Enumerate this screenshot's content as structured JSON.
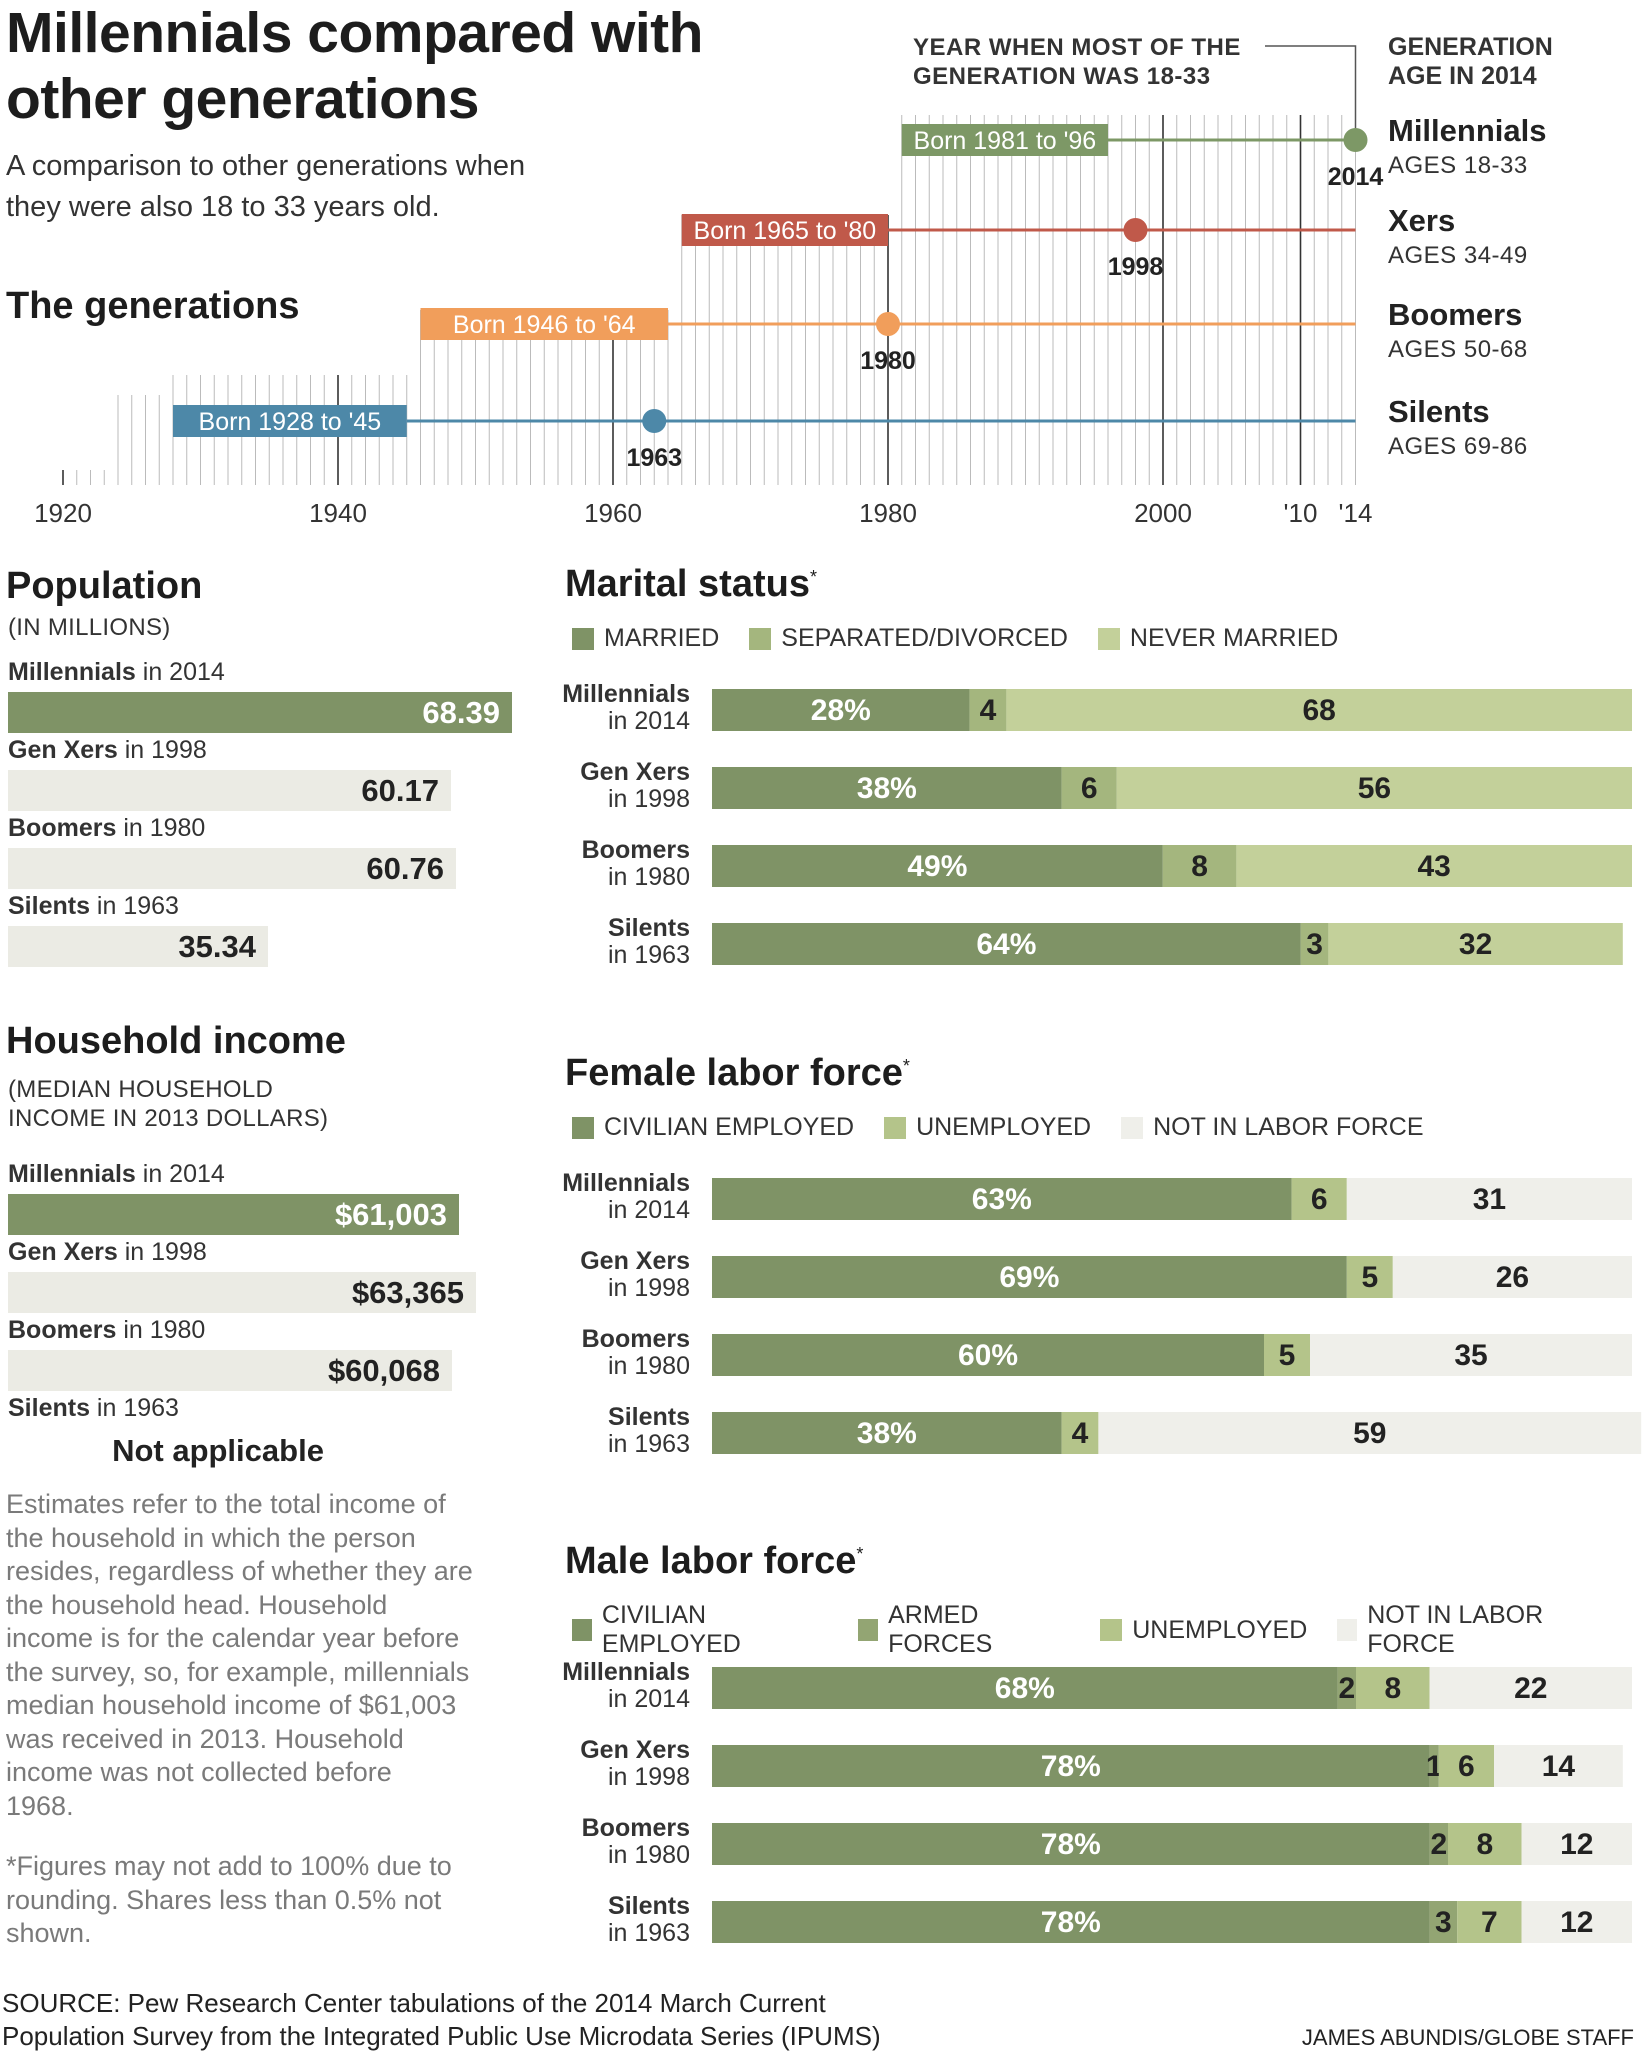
{
  "header": {
    "title_line1": "Millennials compared with",
    "title_line2": "other generations",
    "subtitle_line1": "A comparison to other generations when",
    "subtitle_line2": "they were also 18 to 33 years old."
  },
  "timeline": {
    "heading": "The generations",
    "note_line1": "YEAR WHEN MOST OF THE",
    "note_line2": "GENERATION WAS 18-33",
    "right_head_line1": "GENERATION",
    "right_head_line2": "AGE IN 2014",
    "axis_ticks": [
      "1920",
      "1940",
      "1960",
      "1980",
      "2000",
      "'10",
      "'14"
    ],
    "generations": [
      {
        "born_label": "Born 1981 to '96",
        "start": 1981,
        "end": 1996,
        "marker_year": 2014,
        "marker_label": "2014",
        "name": "Millennials",
        "ages": "AGES 18-33",
        "color": "#7d9866"
      },
      {
        "born_label": "Born 1965 to '80",
        "start": 1965,
        "end": 1980,
        "marker_year": 1998,
        "marker_label": "1998",
        "name": "Xers",
        "ages": "AGES 34-49",
        "color": "#c0594a"
      },
      {
        "born_label": "Born 1946 to '64",
        "start": 1946,
        "end": 1964,
        "marker_year": 1980,
        "marker_label": "1980",
        "name": "Boomers",
        "ages": "AGES 50-68",
        "color": "#f19e5b"
      },
      {
        "born_label": "Born 1928 to '45",
        "start": 1928,
        "end": 1945,
        "marker_year": 1963,
        "marker_label": "1963",
        "name": "Silents",
        "ages": "AGES 69-86",
        "color": "#4d88a8"
      }
    ]
  },
  "population": {
    "heading": "Population",
    "unit": "(IN MILLIONS)",
    "rows": [
      {
        "gen": "Millennials",
        "year": "in 2014",
        "value": 68.39,
        "label": "68.39"
      },
      {
        "gen": "Gen Xers",
        "year": "in 1998",
        "value": 60.17,
        "label": "60.17"
      },
      {
        "gen": "Boomers",
        "year": "in 1980",
        "value": 60.76,
        "label": "60.76"
      },
      {
        "gen": "Silents",
        "year": "in 1963",
        "value": 35.34,
        "label": "35.34"
      }
    ]
  },
  "income": {
    "heading": "Household income",
    "unit_line1": "(MEDIAN HOUSEHOLD",
    "unit_line2": "INCOME IN 2013 DOLLARS)",
    "rows": [
      {
        "gen": "Millennials",
        "year": "in 2014",
        "value": 61003,
        "label": "$61,003"
      },
      {
        "gen": "Gen Xers",
        "year": "in 1998",
        "value": 63365,
        "label": "$63,365"
      },
      {
        "gen": "Boomers",
        "year": "in 1980",
        "value": 60068,
        "label": "$60,068"
      },
      {
        "gen": "Silents",
        "year": "in 1963",
        "value": null,
        "label": "Not applicable"
      }
    ],
    "note": [
      "Estimates refer to the total income of",
      "the household in which the person",
      "resides, regardless of whether they are",
      "the household head. Household",
      "income is for the calendar year before",
      "the survey, so, for example, millennials",
      "median household income of $61,003",
      "was received in 2013. Household",
      "income was not collected before",
      "1968."
    ],
    "footnote": [
      "*Figures may not add to 100% due to",
      "rounding. Shares less than 0.5% not",
      "shown."
    ]
  },
  "marital": {
    "heading": "Marital status",
    "legend": [
      {
        "label": "MARRIED",
        "color": "#7f9366"
      },
      {
        "label": "SEPARATED/DIVORCED",
        "color": "#a4b67e"
      },
      {
        "label": "NEVER MARRIED",
        "color": "#c3d09a"
      }
    ],
    "rows": [
      {
        "gen": "Millennials",
        "year": "in 2014",
        "values": [
          28,
          4,
          68
        ],
        "labels": [
          "28%",
          "4",
          "68"
        ]
      },
      {
        "gen": "Gen Xers",
        "year": "in 1998",
        "values": [
          38,
          6,
          56
        ],
        "labels": [
          "38%",
          "6",
          "56"
        ]
      },
      {
        "gen": "Boomers",
        "year": "in 1980",
        "values": [
          49,
          8,
          43
        ],
        "labels": [
          "49%",
          "8",
          "43"
        ]
      },
      {
        "gen": "Silents",
        "year": "in 1963",
        "values": [
          64,
          3,
          32
        ],
        "labels": [
          "64%",
          "3",
          "32"
        ]
      }
    ]
  },
  "female": {
    "heading": "Female labor force",
    "legend": [
      {
        "label": "CIVILIAN EMPLOYED",
        "color": "#7f9366"
      },
      {
        "label": "UNEMPLOYED",
        "color": "#b4c48a"
      },
      {
        "label": "NOT IN LABOR FORCE",
        "color": "#efefea"
      }
    ],
    "rows": [
      {
        "gen": "Millennials",
        "year": "in 2014",
        "values": [
          63,
          6,
          31
        ],
        "labels": [
          "63%",
          "6",
          "31"
        ]
      },
      {
        "gen": "Gen Xers",
        "year": "in 1998",
        "values": [
          69,
          5,
          26
        ],
        "labels": [
          "69%",
          "5",
          "26"
        ]
      },
      {
        "gen": "Boomers",
        "year": "in 1980",
        "values": [
          60,
          5,
          35
        ],
        "labels": [
          "60%",
          "5",
          "35"
        ]
      },
      {
        "gen": "Silents",
        "year": "in 1963",
        "values": [
          38,
          4,
          59
        ],
        "labels": [
          "38%",
          "4",
          "59"
        ]
      }
    ]
  },
  "male": {
    "heading": "Male labor force",
    "legend": [
      {
        "label": "CIVILIAN EMPLOYED",
        "color": "#7f9366"
      },
      {
        "label": "ARMED FORCES",
        "color": "#93a573"
      },
      {
        "label": "UNEMPLOYED",
        "color": "#b4c48a"
      },
      {
        "label": "NOT IN LABOR FORCE",
        "color": "#efefea"
      }
    ],
    "rows": [
      {
        "gen": "Millennials",
        "year": "in 2014",
        "values": [
          68,
          2,
          8,
          22
        ],
        "labels": [
          "68%",
          "2",
          "8",
          "22"
        ]
      },
      {
        "gen": "Gen Xers",
        "year": "in 1998",
        "values": [
          78,
          1,
          6,
          14
        ],
        "labels": [
          "78%",
          "1",
          "6",
          "14"
        ]
      },
      {
        "gen": "Boomers",
        "year": "in 1980",
        "values": [
          78,
          2,
          8,
          12
        ],
        "labels": [
          "78%",
          "2",
          "8",
          "12"
        ]
      },
      {
        "gen": "Silents",
        "year": "in 1963",
        "values": [
          78,
          3,
          7,
          12
        ],
        "labels": [
          "78%",
          "3",
          "7",
          "12"
        ]
      }
    ]
  },
  "footer": {
    "source_line1": "SOURCE: Pew Research Center tabulations of the 2014 March Current",
    "source_line2": "Population Survey from the Integrated Public Use Microdata Series (IPUMS)",
    "credit": "JAMES ABUNDIS/GLOBE STAFF"
  },
  "chart_data": [
    {
      "type": "table",
      "title": "The generations",
      "rows": [
        {
          "name": "Millennials",
          "born": [
            1981,
            1996
          ],
          "year_18_33": 2014,
          "ages_2014": "18-33"
        },
        {
          "name": "Xers",
          "born": [
            1965,
            1980
          ],
          "year_18_33": 1998,
          "ages_2014": "34-49"
        },
        {
          "name": "Boomers",
          "born": [
            1946,
            1964
          ],
          "year_18_33": 1980,
          "ages_2014": "50-68"
        },
        {
          "name": "Silents",
          "born": [
            1928,
            1945
          ],
          "year_18_33": 1963,
          "ages_2014": "69-86"
        }
      ]
    },
    {
      "type": "bar",
      "title": "Population",
      "ylabel": "(IN MILLIONS)",
      "categories": [
        "Millennials in 2014",
        "Gen Xers in 1998",
        "Boomers in 1980",
        "Silents in 1963"
      ],
      "values": [
        68.39,
        60.17,
        60.76,
        35.34
      ]
    },
    {
      "type": "bar",
      "title": "Household income",
      "ylabel": "(MEDIAN HOUSEHOLD INCOME IN 2013 DOLLARS)",
      "categories": [
        "Millennials in 2014",
        "Gen Xers in 1998",
        "Boomers in 1980",
        "Silents in 1963"
      ],
      "values": [
        61003,
        63365,
        60068,
        null
      ]
    },
    {
      "type": "bar",
      "title": "Marital status",
      "stacked": true,
      "categories": [
        "Millennials in 2014",
        "Gen Xers in 1998",
        "Boomers in 1980",
        "Silents in 1963"
      ],
      "series": [
        {
          "name": "MARRIED",
          "values": [
            28,
            38,
            49,
            64
          ]
        },
        {
          "name": "SEPARATED/DIVORCED",
          "values": [
            4,
            6,
            8,
            3
          ]
        },
        {
          "name": "NEVER MARRIED",
          "values": [
            68,
            56,
            43,
            32
          ]
        }
      ]
    },
    {
      "type": "bar",
      "title": "Female labor force",
      "stacked": true,
      "categories": [
        "Millennials in 2014",
        "Gen Xers in 1998",
        "Boomers in 1980",
        "Silents in 1963"
      ],
      "series": [
        {
          "name": "CIVILIAN EMPLOYED",
          "values": [
            63,
            69,
            60,
            38
          ]
        },
        {
          "name": "UNEMPLOYED",
          "values": [
            6,
            5,
            5,
            4
          ]
        },
        {
          "name": "NOT IN LABOR FORCE",
          "values": [
            31,
            26,
            35,
            59
          ]
        }
      ]
    },
    {
      "type": "bar",
      "title": "Male labor force",
      "stacked": true,
      "categories": [
        "Millennials in 2014",
        "Gen Xers in 1998",
        "Boomers in 1980",
        "Silents in 1963"
      ],
      "series": [
        {
          "name": "CIVILIAN EMPLOYED",
          "values": [
            68,
            78,
            78,
            78
          ]
        },
        {
          "name": "ARMED FORCES",
          "values": [
            2,
            1,
            2,
            3
          ]
        },
        {
          "name": "UNEMPLOYED",
          "values": [
            8,
            6,
            8,
            7
          ]
        },
        {
          "name": "NOT IN LABOR FORCE",
          "values": [
            22,
            14,
            12,
            12
          ]
        }
      ]
    }
  ]
}
